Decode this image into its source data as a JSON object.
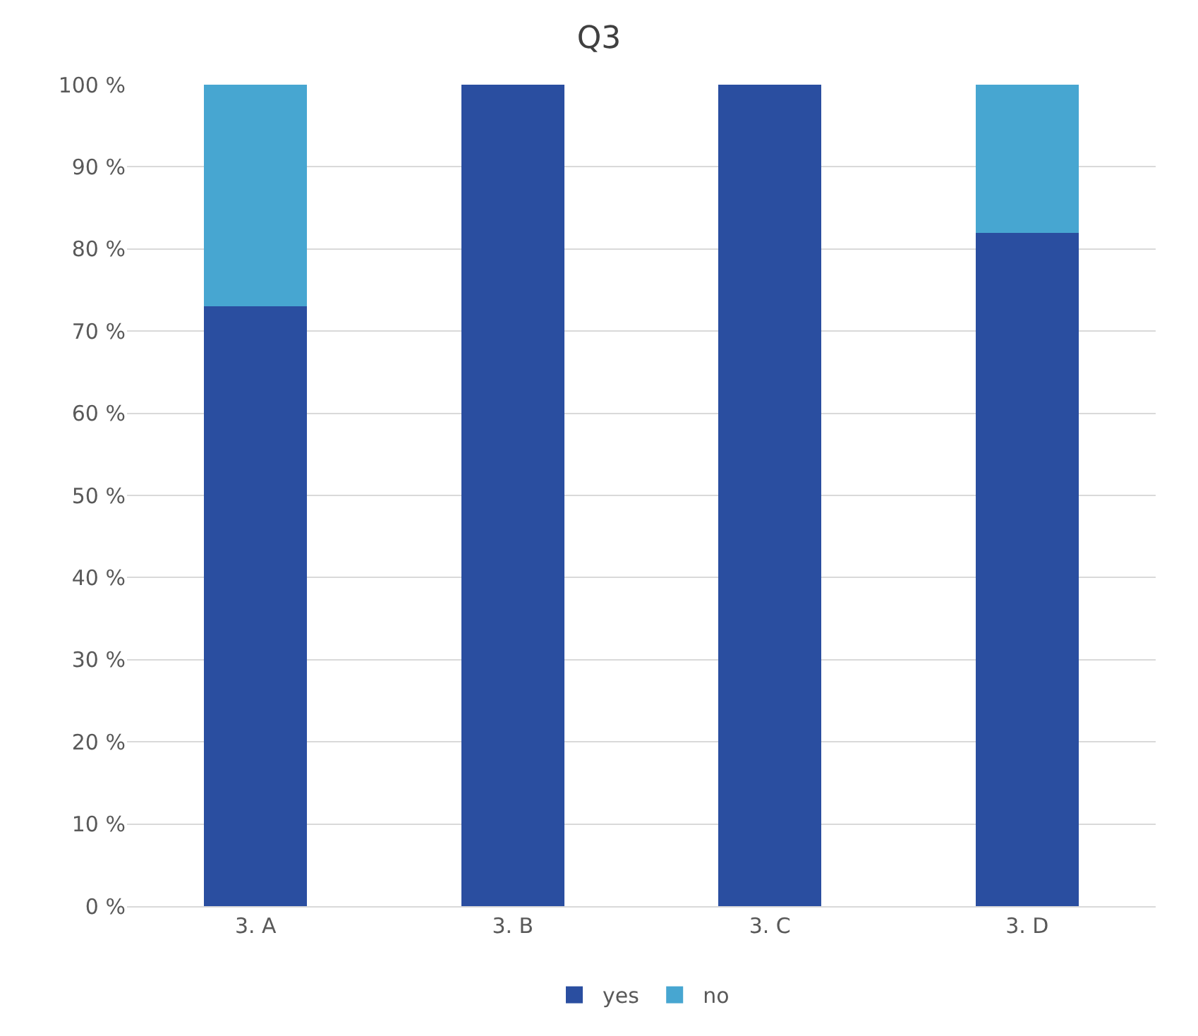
{
  "chart_data": {
    "type": "bar",
    "title": "Q3",
    "stacked": true,
    "categories": [
      "3. A",
      "3. B",
      "3. C",
      "3. D"
    ],
    "series": [
      {
        "name": "yes",
        "color": "#2a4ea0",
        "values": [
          73,
          100,
          100,
          82
        ]
      },
      {
        "name": "no",
        "color": "#47a6d1",
        "values": [
          27,
          0,
          0,
          18
        ]
      }
    ],
    "ylim": [
      0,
      100
    ],
    "yticks": [
      {
        "value": 0,
        "label": "0 %"
      },
      {
        "value": 10,
        "label": "10 %"
      },
      {
        "value": 20,
        "label": "20 %"
      },
      {
        "value": 30,
        "label": "30 %"
      },
      {
        "value": 40,
        "label": "40 %"
      },
      {
        "value": 50,
        "label": "50 %"
      },
      {
        "value": 60,
        "label": "60 %"
      },
      {
        "value": 70,
        "label": "70 %"
      },
      {
        "value": 80,
        "label": "80 %"
      },
      {
        "value": 90,
        "label": "90 %"
      },
      {
        "value": 100,
        "label": "100 %"
      }
    ],
    "grid": "y",
    "legend": "bottom"
  }
}
